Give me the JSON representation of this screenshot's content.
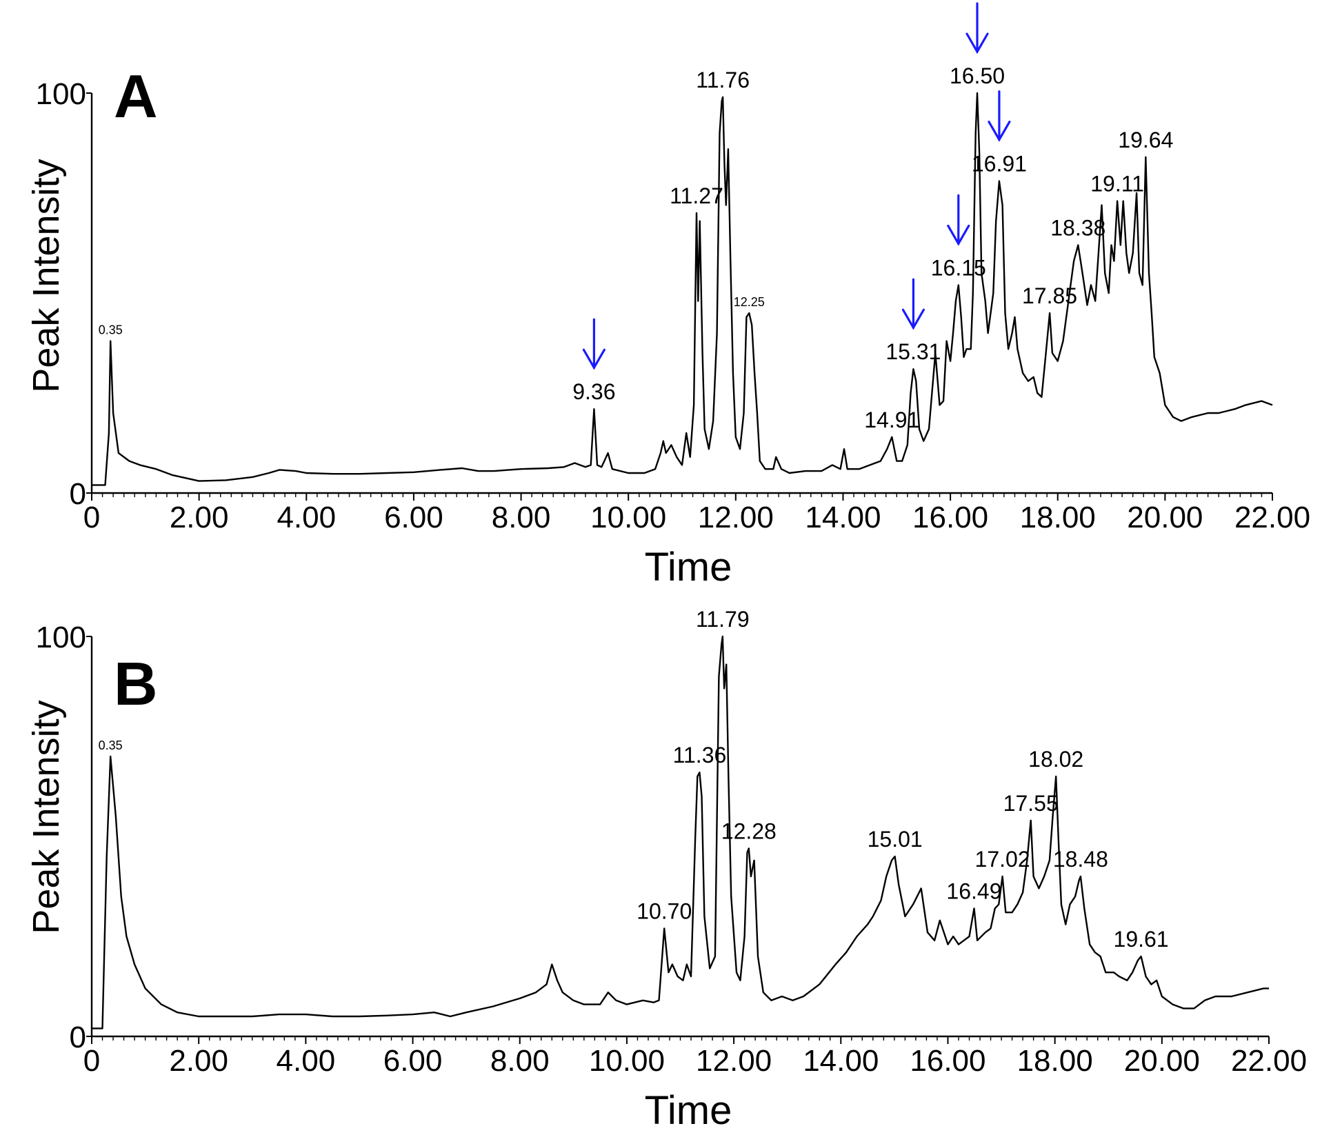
{
  "chart_data": [
    {
      "panel": "A",
      "type": "line",
      "xlabel": "Time",
      "ylabel": "Peak Intensity",
      "xlim": [
        0,
        22
      ],
      "ylim": [
        0,
        100
      ],
      "x_ticks": [
        "0",
        "2.00",
        "4.00",
        "6.00",
        "8.00",
        "10.00",
        "12.00",
        "14.00",
        "16.00",
        "18.00",
        "20.00",
        "22.00"
      ],
      "y_ticks": [
        "0",
        "100"
      ],
      "peak_labels": [
        {
          "text": "0.35",
          "x": 0.35,
          "y": 38,
          "small": true
        },
        {
          "text": "9.36",
          "x": 9.36,
          "y": 21
        },
        {
          "text": "11.27",
          "x": 11.27,
          "y": 70
        },
        {
          "text": "11.76",
          "x": 11.76,
          "y": 99
        },
        {
          "text": "12.25",
          "x": 12.25,
          "y": 45,
          "small": true
        },
        {
          "text": "14.91",
          "x": 14.91,
          "y": 14
        },
        {
          "text": "15.31",
          "x": 15.31,
          "y": 31
        },
        {
          "text": "16.15",
          "x": 16.15,
          "y": 52
        },
        {
          "text": "16.50",
          "x": 16.5,
          "y": 100
        },
        {
          "text": "16.91",
          "x": 16.91,
          "y": 78
        },
        {
          "text": "17.85",
          "x": 17.85,
          "y": 45
        },
        {
          "text": "18.38",
          "x": 18.38,
          "y": 62
        },
        {
          "text": "19.11",
          "x": 19.11,
          "y": 73
        },
        {
          "text": "19.64",
          "x": 19.64,
          "y": 84
        }
      ],
      "arrows_at": [
        9.36,
        15.31,
        16.15,
        16.5,
        16.91
      ],
      "points": [
        [
          0,
          2
        ],
        [
          0.25,
          2
        ],
        [
          0.32,
          15
        ],
        [
          0.35,
          38
        ],
        [
          0.4,
          20
        ],
        [
          0.5,
          10
        ],
        [
          0.7,
          8
        ],
        [
          0.9,
          7
        ],
        [
          1.2,
          6
        ],
        [
          1.5,
          4.5
        ],
        [
          2,
          3
        ],
        [
          2.5,
          3.2
        ],
        [
          3,
          4
        ],
        [
          3.3,
          5
        ],
        [
          3.5,
          5.8
        ],
        [
          3.8,
          5.5
        ],
        [
          4,
          5
        ],
        [
          4.5,
          4.8
        ],
        [
          5,
          4.8
        ],
        [
          5.5,
          5
        ],
        [
          6,
          5.2
        ],
        [
          6.5,
          5.8
        ],
        [
          6.9,
          6.2
        ],
        [
          7.2,
          5.5
        ],
        [
          7.5,
          5.5
        ],
        [
          8,
          6
        ],
        [
          8.5,
          6.2
        ],
        [
          8.8,
          6.5
        ],
        [
          9,
          7.5
        ],
        [
          9.2,
          6.5
        ],
        [
          9.3,
          7
        ],
        [
          9.36,
          21
        ],
        [
          9.42,
          7
        ],
        [
          9.5,
          6.5
        ],
        [
          9.62,
          10
        ],
        [
          9.7,
          6
        ],
        [
          10,
          5
        ],
        [
          10.3,
          5
        ],
        [
          10.5,
          6
        ],
        [
          10.6,
          10
        ],
        [
          10.65,
          13
        ],
        [
          10.7,
          10
        ],
        [
          10.8,
          12
        ],
        [
          10.9,
          9
        ],
        [
          11,
          7
        ],
        [
          11.08,
          15
        ],
        [
          11.15,
          9
        ],
        [
          11.22,
          22
        ],
        [
          11.27,
          70
        ],
        [
          11.3,
          48
        ],
        [
          11.33,
          68
        ],
        [
          11.38,
          35
        ],
        [
          11.42,
          16
        ],
        [
          11.5,
          11
        ],
        [
          11.58,
          18
        ],
        [
          11.65,
          40
        ],
        [
          11.7,
          90
        ],
        [
          11.74,
          98
        ],
        [
          11.76,
          99
        ],
        [
          11.79,
          82
        ],
        [
          11.82,
          72
        ],
        [
          11.86,
          86
        ],
        [
          11.9,
          60
        ],
        [
          11.95,
          30
        ],
        [
          12,
          14
        ],
        [
          12.08,
          11
        ],
        [
          12.15,
          20
        ],
        [
          12.2,
          44
        ],
        [
          12.25,
          45
        ],
        [
          12.3,
          42
        ],
        [
          12.35,
          30
        ],
        [
          12.4,
          20
        ],
        [
          12.45,
          8
        ],
        [
          12.55,
          6
        ],
        [
          12.7,
          6
        ],
        [
          12.75,
          9
        ],
        [
          12.85,
          6
        ],
        [
          13,
          5
        ],
        [
          13.3,
          5.5
        ],
        [
          13.6,
          5.5
        ],
        [
          13.8,
          7
        ],
        [
          13.95,
          6
        ],
        [
          14.02,
          11
        ],
        [
          14.08,
          6
        ],
        [
          14.3,
          6
        ],
        [
          14.5,
          7
        ],
        [
          14.7,
          8
        ],
        [
          14.82,
          11
        ],
        [
          14.91,
          14
        ],
        [
          15,
          8
        ],
        [
          15.1,
          8
        ],
        [
          15.2,
          12
        ],
        [
          15.26,
          25
        ],
        [
          15.31,
          31
        ],
        [
          15.36,
          28
        ],
        [
          15.42,
          16
        ],
        [
          15.5,
          13
        ],
        [
          15.6,
          16
        ],
        [
          15.65,
          24
        ],
        [
          15.72,
          35
        ],
        [
          15.8,
          22
        ],
        [
          15.87,
          23
        ],
        [
          15.93,
          38
        ],
        [
          16,
          33
        ],
        [
          16.05,
          40
        ],
        [
          16.1,
          48
        ],
        [
          16.15,
          52
        ],
        [
          16.2,
          44
        ],
        [
          16.25,
          34
        ],
        [
          16.3,
          36
        ],
        [
          16.38,
          36
        ],
        [
          16.42,
          50
        ],
        [
          16.47,
          90
        ],
        [
          16.5,
          100
        ],
        [
          16.54,
          85
        ],
        [
          16.58,
          55
        ],
        [
          16.65,
          48
        ],
        [
          16.7,
          40
        ],
        [
          16.75,
          45
        ],
        [
          16.8,
          50
        ],
        [
          16.85,
          68
        ],
        [
          16.91,
          78
        ],
        [
          16.97,
          72
        ],
        [
          17.02,
          45
        ],
        [
          17.08,
          36
        ],
        [
          17.15,
          40
        ],
        [
          17.2,
          44
        ],
        [
          17.25,
          36
        ],
        [
          17.35,
          30
        ],
        [
          17.45,
          28
        ],
        [
          17.55,
          29
        ],
        [
          17.62,
          25
        ],
        [
          17.7,
          24
        ],
        [
          17.78,
          35
        ],
        [
          17.85,
          45
        ],
        [
          17.9,
          35
        ],
        [
          18,
          33
        ],
        [
          18.1,
          38
        ],
        [
          18.2,
          48
        ],
        [
          18.3,
          58
        ],
        [
          18.38,
          62
        ],
        [
          18.45,
          56
        ],
        [
          18.55,
          47
        ],
        [
          18.62,
          52
        ],
        [
          18.7,
          48
        ],
        [
          18.75,
          58
        ],
        [
          18.82,
          72
        ],
        [
          18.88,
          55
        ],
        [
          18.95,
          50
        ],
        [
          19,
          62
        ],
        [
          19.05,
          58
        ],
        [
          19.11,
          73
        ],
        [
          19.17,
          62
        ],
        [
          19.22,
          73
        ],
        [
          19.28,
          60
        ],
        [
          19.33,
          55
        ],
        [
          19.4,
          60
        ],
        [
          19.47,
          75
        ],
        [
          19.52,
          55
        ],
        [
          19.58,
          52
        ],
        [
          19.64,
          84
        ],
        [
          19.7,
          55
        ],
        [
          19.75,
          45
        ],
        [
          19.8,
          34
        ],
        [
          19.9,
          30
        ],
        [
          20,
          22
        ],
        [
          20.15,
          19
        ],
        [
          20.3,
          18
        ],
        [
          20.5,
          19
        ],
        [
          20.8,
          20
        ],
        [
          21,
          20
        ],
        [
          21.3,
          21
        ],
        [
          21.5,
          22
        ],
        [
          21.8,
          23
        ],
        [
          22,
          22
        ]
      ]
    },
    {
      "panel": "B",
      "type": "line",
      "xlabel": "Time",
      "ylabel": "Peak Intensity",
      "xlim": [
        0,
        22
      ],
      "ylim": [
        0,
        100
      ],
      "x_ticks": [
        "0",
        "2.00",
        "4.00",
        "6.00",
        "8.00",
        "10.00",
        "12.00",
        "14.00",
        "16.00",
        "18.00",
        "20.00",
        "22.00"
      ],
      "y_ticks": [
        "0",
        "100"
      ],
      "peak_labels": [
        {
          "text": "0.35",
          "x": 0.35,
          "y": 70,
          "small": true
        },
        {
          "text": "10.70",
          "x": 10.7,
          "y": 27
        },
        {
          "text": "11.36",
          "x": 11.36,
          "y": 66
        },
        {
          "text": "11.79",
          "x": 11.79,
          "y": 100
        },
        {
          "text": "12.28",
          "x": 12.28,
          "y": 47
        },
        {
          "text": "15.01",
          "x": 15.01,
          "y": 45
        },
        {
          "text": "16.49",
          "x": 16.49,
          "y": 32
        },
        {
          "text": "17.02",
          "x": 17.02,
          "y": 40
        },
        {
          "text": "17.55",
          "x": 17.55,
          "y": 54
        },
        {
          "text": "18.02",
          "x": 18.02,
          "y": 65
        },
        {
          "text": "18.48",
          "x": 18.48,
          "y": 40
        },
        {
          "text": "19.61",
          "x": 19.61,
          "y": 20
        }
      ],
      "arrows_at": [],
      "points": [
        [
          0,
          2
        ],
        [
          0.2,
          2
        ],
        [
          0.28,
          45
        ],
        [
          0.35,
          70
        ],
        [
          0.45,
          55
        ],
        [
          0.55,
          35
        ],
        [
          0.65,
          25
        ],
        [
          0.8,
          18
        ],
        [
          1,
          12
        ],
        [
          1.3,
          8
        ],
        [
          1.6,
          6
        ],
        [
          2,
          5
        ],
        [
          2.5,
          5
        ],
        [
          3,
          5
        ],
        [
          3.5,
          5.5
        ],
        [
          4,
          5.5
        ],
        [
          4.5,
          5
        ],
        [
          5,
          5
        ],
        [
          5.5,
          5.2
        ],
        [
          6,
          5.5
        ],
        [
          6.4,
          6
        ],
        [
          6.7,
          5
        ],
        [
          7,
          6
        ],
        [
          7.5,
          7.5
        ],
        [
          8,
          9.5
        ],
        [
          8.3,
          11
        ],
        [
          8.5,
          13
        ],
        [
          8.6,
          18
        ],
        [
          8.7,
          14
        ],
        [
          8.8,
          11
        ],
        [
          9,
          9
        ],
        [
          9.2,
          8
        ],
        [
          9.5,
          8
        ],
        [
          9.65,
          11
        ],
        [
          9.8,
          9
        ],
        [
          10,
          8
        ],
        [
          10.3,
          9
        ],
        [
          10.5,
          8.5
        ],
        [
          10.6,
          9
        ],
        [
          10.7,
          27
        ],
        [
          10.78,
          16
        ],
        [
          10.85,
          18
        ],
        [
          10.95,
          15
        ],
        [
          11.05,
          14
        ],
        [
          11.12,
          18
        ],
        [
          11.2,
          15
        ],
        [
          11.28,
          50
        ],
        [
          11.32,
          65
        ],
        [
          11.36,
          66
        ],
        [
          11.4,
          60
        ],
        [
          11.45,
          30
        ],
        [
          11.55,
          17
        ],
        [
          11.65,
          20
        ],
        [
          11.72,
          90
        ],
        [
          11.77,
          98
        ],
        [
          11.79,
          100
        ],
        [
          11.82,
          87
        ],
        [
          11.86,
          93
        ],
        [
          11.9,
          65
        ],
        [
          11.95,
          35
        ],
        [
          12.05,
          16
        ],
        [
          12.12,
          14
        ],
        [
          12.2,
          25
        ],
        [
          12.25,
          46
        ],
        [
          12.28,
          47
        ],
        [
          12.32,
          40
        ],
        [
          12.38,
          44
        ],
        [
          12.45,
          20
        ],
        [
          12.55,
          11
        ],
        [
          12.7,
          9
        ],
        [
          12.9,
          10
        ],
        [
          13.1,
          9
        ],
        [
          13.3,
          10
        ],
        [
          13.6,
          13
        ],
        [
          13.9,
          18
        ],
        [
          14.1,
          21
        ],
        [
          14.3,
          25
        ],
        [
          14.5,
          28
        ],
        [
          14.6,
          30
        ],
        [
          14.75,
          34
        ],
        [
          14.85,
          40
        ],
        [
          14.95,
          44
        ],
        [
          15.01,
          45
        ],
        [
          15.08,
          38
        ],
        [
          15.2,
          30
        ],
        [
          15.35,
          33
        ],
        [
          15.5,
          37
        ],
        [
          15.62,
          26
        ],
        [
          15.75,
          24
        ],
        [
          15.85,
          29
        ],
        [
          15.9,
          27
        ],
        [
          16,
          23
        ],
        [
          16.1,
          25
        ],
        [
          16.2,
          23
        ],
        [
          16.3,
          24
        ],
        [
          16.4,
          25
        ],
        [
          16.49,
          32
        ],
        [
          16.55,
          24
        ],
        [
          16.7,
          26
        ],
        [
          16.8,
          27
        ],
        [
          16.88,
          32
        ],
        [
          16.95,
          33
        ],
        [
          17.02,
          40
        ],
        [
          17.08,
          31
        ],
        [
          17.2,
          31
        ],
        [
          17.3,
          33
        ],
        [
          17.4,
          36
        ],
        [
          17.48,
          44
        ],
        [
          17.55,
          54
        ],
        [
          17.6,
          40
        ],
        [
          17.7,
          37
        ],
        [
          17.8,
          40
        ],
        [
          17.9,
          44
        ],
        [
          17.96,
          55
        ],
        [
          18.02,
          65
        ],
        [
          18.07,
          48
        ],
        [
          18.12,
          33
        ],
        [
          18.2,
          28
        ],
        [
          18.28,
          33
        ],
        [
          18.38,
          35
        ],
        [
          18.45,
          39
        ],
        [
          18.48,
          40
        ],
        [
          18.55,
          32
        ],
        [
          18.65,
          23
        ],
        [
          18.75,
          21
        ],
        [
          18.85,
          20
        ],
        [
          18.95,
          16
        ],
        [
          19.1,
          16
        ],
        [
          19.2,
          15
        ],
        [
          19.35,
          14
        ],
        [
          19.45,
          16
        ],
        [
          19.55,
          19
        ],
        [
          19.61,
          20
        ],
        [
          19.7,
          15
        ],
        [
          19.8,
          13
        ],
        [
          19.9,
          14
        ],
        [
          20,
          10
        ],
        [
          20.2,
          8
        ],
        [
          20.4,
          7
        ],
        [
          20.6,
          7
        ],
        [
          20.8,
          9
        ],
        [
          21,
          10
        ],
        [
          21.3,
          10
        ],
        [
          21.6,
          11
        ],
        [
          21.9,
          12
        ],
        [
          22,
          12
        ]
      ]
    }
  ]
}
